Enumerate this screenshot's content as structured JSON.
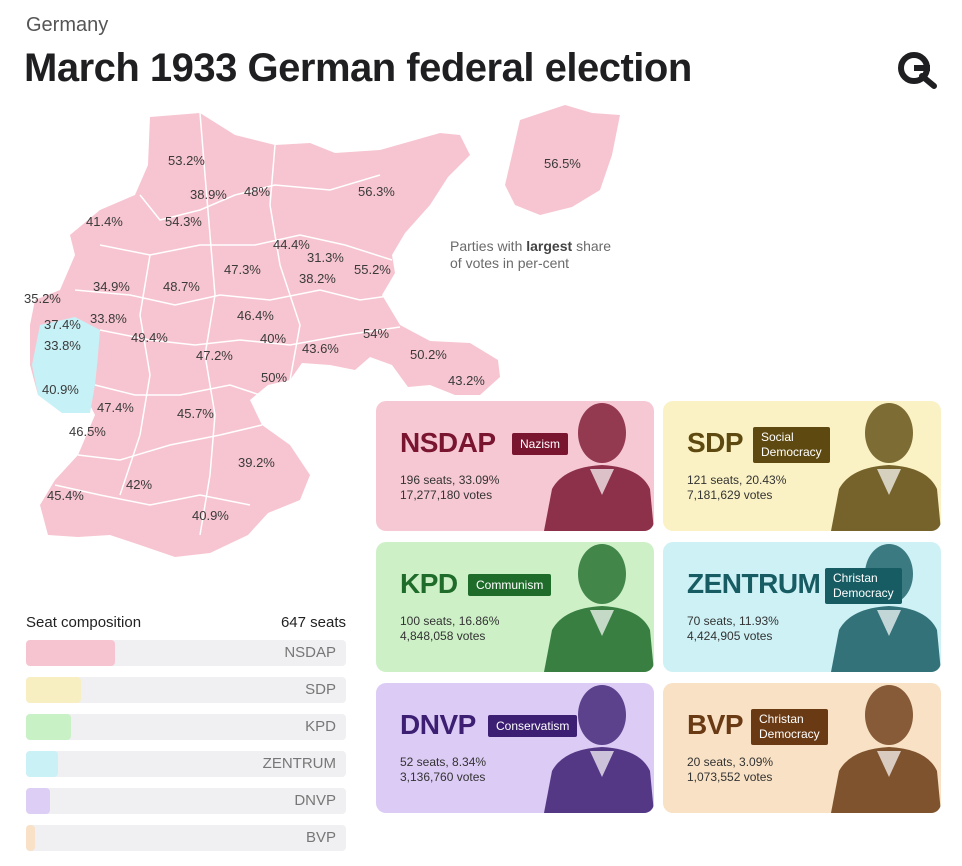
{
  "header": {
    "kicker": "Germany",
    "title": "March 1933 German federal election"
  },
  "map": {
    "note_prefix": "Parties with ",
    "note_bold": "largest",
    "note_suffix": "share of votes in per-cent",
    "region_values": [
      "53.2%",
      "38.9%",
      "48%",
      "56.3%",
      "56.5%",
      "41.4%",
      "54.3%",
      "44.4%",
      "31.3%",
      "47.3%",
      "55.2%",
      "38.2%",
      "34.9%",
      "48.7%",
      "35.2%",
      "37.4%",
      "33.8%",
      "33.8%",
      "46.4%",
      "49.4%",
      "40%",
      "54%",
      "43.6%",
      "47.2%",
      "50.2%",
      "40.9%",
      "50%",
      "43.2%",
      "47.4%",
      "45.7%",
      "46.5%",
      "39.2%",
      "42%",
      "45.4%",
      "40.9%"
    ]
  },
  "chart_data": {
    "type": "bar",
    "title": "Seat composition",
    "total_label": "647 seats",
    "total_seats": 647,
    "categories": [
      "NSDAP",
      "SDP",
      "KPD",
      "ZENTRUM",
      "DNVP",
      "BVP"
    ],
    "values": [
      196,
      121,
      100,
      70,
      52,
      20
    ],
    "vote_shares": [
      "33.09%",
      "20.43%",
      "16.86%",
      "11.93%",
      "8.34%",
      "3.09%"
    ],
    "xlim": [
      0,
      647
    ]
  },
  "parties": [
    {
      "name": "NSDAP",
      "ideology": "Nazism",
      "seats_line": "196 seats, 33.09%",
      "votes_line": "17,277,180 votes",
      "bg": "#f6c8d3",
      "accent": "#7a1530"
    },
    {
      "name": "SDP",
      "ideology": "Social Democracy",
      "seats_line": "121 seats, 20.43%",
      "votes_line": "7,181,629 votes",
      "bg": "#faf2c4",
      "accent": "#5e4a10"
    },
    {
      "name": "KPD",
      "ideology": "Communism",
      "seats_line": "100 seats, 16.86%",
      "votes_line": "4,848,058 votes",
      "bg": "#cdf0c7",
      "accent": "#1f6b2a"
    },
    {
      "name": "ZENTRUM",
      "ideology": "Christan Democracy",
      "seats_line": "70 seats, 11.93%",
      "votes_line": "4,424,905 votes",
      "bg": "#cdf1f5",
      "accent": "#175c63"
    },
    {
      "name": "DNVP",
      "ideology": "Conservatism",
      "seats_line": "52 seats, 8.34%",
      "votes_line": "3,136,760 votes",
      "bg": "#dccbf4",
      "accent": "#3c1f72"
    },
    {
      "name": "BVP",
      "ideology": "Christan Democracy",
      "seats_line": "20 seats, 3.09%",
      "votes_line": "1,073,552 votes",
      "bg": "#f8e1c4",
      "accent": "#6a3a14"
    }
  ],
  "colors": {
    "map_pink": "#f7c5d1",
    "map_cyan": "#c6f1f6",
    "bar_track": "#f0f0f2",
    "bar_fills": [
      "#f6c4d1",
      "#f7efc1",
      "#c9f1c6",
      "#c9f1f6",
      "#ddcef6",
      "#f8e1c6"
    ]
  },
  "icons": {
    "logo": "magnifier-logo-icon"
  }
}
